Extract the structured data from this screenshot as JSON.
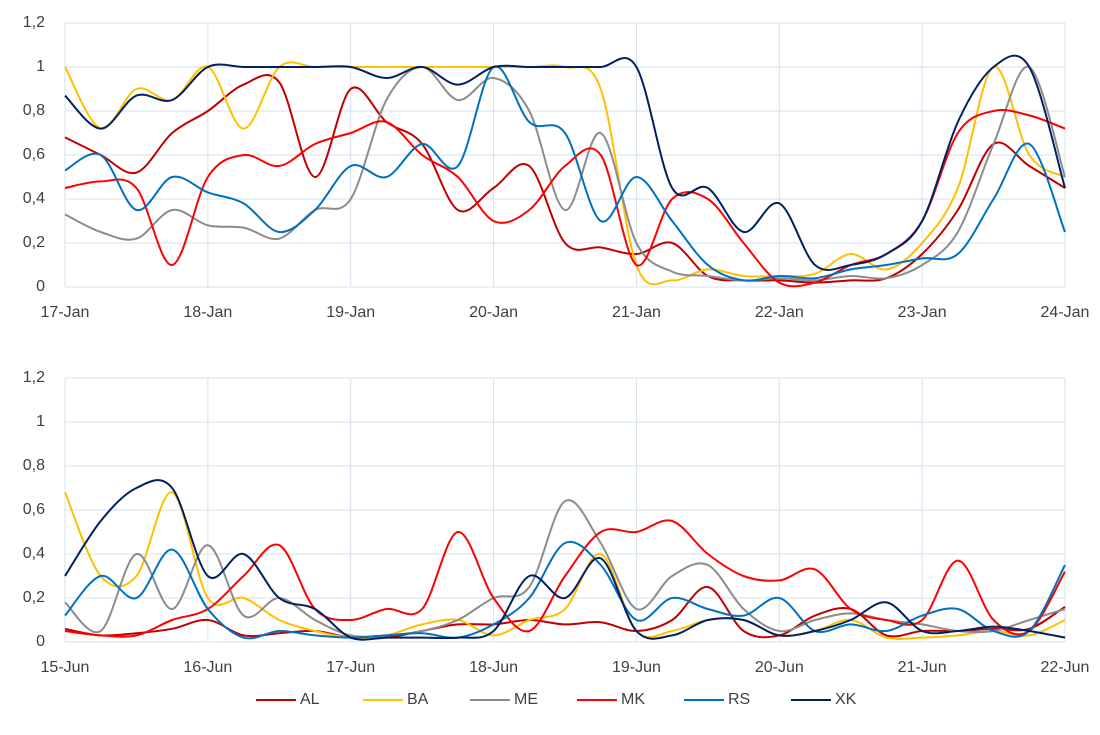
{
  "chart_data": [
    {
      "type": "line",
      "grid": true,
      "legend": "bottom",
      "categories": [
        "17-Jan",
        null,
        null,
        null,
        "18-Jan",
        null,
        null,
        null,
        "19-Jan",
        null,
        null,
        null,
        "20-Jan",
        null,
        null,
        null,
        "21-Jan",
        null,
        null,
        null,
        "22-Jan",
        null,
        null,
        null,
        "23-Jan",
        null,
        null,
        null,
        "24-Jan"
      ],
      "ylim": [
        0,
        1.2
      ],
      "yticks": [
        0,
        {
          "value": 0.2,
          "label": "0,2"
        },
        {
          "value": 0.4,
          "label": "0,4"
        },
        {
          "value": 0.6,
          "label": "0,6"
        },
        {
          "value": 0.8,
          "label": "0,8"
        },
        1,
        {
          "value": 1.2,
          "label": "1,2"
        }
      ],
      "series": [
        {
          "name": "AL",
          "color": "#c00000",
          "values": [
            0.68,
            0.6,
            0.52,
            0.7,
            0.8,
            0.92,
            0.93,
            0.5,
            0.9,
            0.75,
            0.65,
            0.35,
            0.45,
            0.55,
            0.2,
            0.18,
            0.15,
            0.2,
            0.05,
            0.03,
            0.03,
            0.02,
            0.03,
            0.04,
            0.15,
            0.35,
            0.65,
            0.55,
            0.45
          ]
        },
        {
          "name": "BA",
          "color": "#ffc000",
          "values": [
            1,
            0.72,
            0.9,
            0.85,
            1,
            0.72,
            1,
            1,
            1,
            1,
            1,
            1,
            1,
            1,
            1,
            0.9,
            0.1,
            0.03,
            0.08,
            0.05,
            0.05,
            0.06,
            0.15,
            0.08,
            0.2,
            0.45,
            1,
            0.6,
            0.5
          ]
        },
        {
          "name": "ME",
          "color": "#8c8c8c",
          "values": [
            0.33,
            0.25,
            0.22,
            0.35,
            0.28,
            0.27,
            0.22,
            0.35,
            0.4,
            0.85,
            1,
            0.85,
            0.95,
            0.8,
            0.35,
            0.7,
            0.2,
            0.07,
            0.05,
            0.03,
            0.04,
            0.03,
            0.05,
            0.04,
            0.1,
            0.25,
            0.65,
            1,
            0.5
          ]
        },
        {
          "name": "MK",
          "color": "#ff0000",
          "values": [
            0.45,
            0.48,
            0.45,
            0.1,
            0.5,
            0.6,
            0.55,
            0.65,
            0.7,
            0.75,
            0.6,
            0.5,
            0.3,
            0.35,
            0.55,
            0.6,
            0.1,
            0.4,
            0.4,
            0.2,
            0.02,
            0.02,
            0.1,
            0.15,
            0.3,
            0.7,
            0.8,
            0.78,
            0.72
          ]
        },
        {
          "name": "RS",
          "color": "#0070c0",
          "values": [
            0.53,
            0.6,
            0.35,
            0.5,
            0.43,
            0.38,
            0.25,
            0.35,
            0.55,
            0.5,
            0.65,
            0.55,
            1,
            0.75,
            0.7,
            0.3,
            0.5,
            0.3,
            0.1,
            0.03,
            0.05,
            0.04,
            0.08,
            0.1,
            0.13,
            0.15,
            0.4,
            0.65,
            0.25
          ]
        },
        {
          "name": "XK",
          "color": "#002060",
          "values": [
            0.87,
            0.72,
            0.87,
            0.85,
            1,
            1,
            1,
            1,
            1,
            0.95,
            1,
            0.92,
            1,
            1,
            1,
            1,
            1,
            0.45,
            0.45,
            0.25,
            0.38,
            0.1,
            0.1,
            0.15,
            0.3,
            0.75,
            1,
            1,
            0.45
          ]
        }
      ]
    },
    {
      "type": "line",
      "grid": true,
      "categories": [
        "15-Jun",
        null,
        null,
        null,
        "16-Jun",
        null,
        null,
        null,
        "17-Jun",
        null,
        null,
        null,
        "18-Jun",
        null,
        null,
        null,
        "19-Jun",
        null,
        null,
        null,
        "20-Jun",
        null,
        null,
        null,
        "21-Jun",
        null,
        null,
        null,
        "22-Jun"
      ],
      "ylim": [
        0,
        1.2
      ],
      "yticks": [
        0,
        {
          "value": 0.2,
          "label": "0,2"
        },
        {
          "value": 0.4,
          "label": "0,4"
        },
        {
          "value": 0.6,
          "label": "0,6"
        },
        {
          "value": 0.8,
          "label": "0,8"
        },
        1,
        {
          "value": 1.2,
          "label": "1,2"
        }
      ],
      "series": [
        {
          "name": "AL",
          "color": "#c00000",
          "values": [
            0.06,
            0.03,
            0.04,
            0.06,
            0.1,
            0.03,
            0.04,
            0.05,
            0.02,
            0.02,
            0.05,
            0.08,
            0.08,
            0.1,
            0.08,
            0.09,
            0.05,
            0.1,
            0.25,
            0.05,
            0.03,
            0.12,
            0.15,
            0.03,
            0.05,
            0.05,
            0.06,
            0.06,
            0.16
          ]
        },
        {
          "name": "BA",
          "color": "#ffc000",
          "values": [
            0.68,
            0.3,
            0.3,
            0.68,
            0.2,
            0.2,
            0.1,
            0.05,
            0.02,
            0.03,
            0.08,
            0.1,
            0.03,
            0.1,
            0.15,
            0.4,
            0.05,
            0.05,
            0.1,
            0.1,
            0.03,
            0.05,
            0.1,
            0.02,
            0.02,
            0.03,
            0.05,
            0.03,
            0.1
          ]
        },
        {
          "name": "ME",
          "color": "#8c8c8c",
          "values": [
            0.18,
            0.05,
            0.4,
            0.15,
            0.44,
            0.12,
            0.2,
            0.1,
            0.03,
            0.03,
            0.05,
            0.1,
            0.2,
            0.25,
            0.64,
            0.45,
            0.15,
            0.3,
            0.35,
            0.15,
            0.05,
            0.1,
            0.13,
            0.1,
            0.08,
            0.05,
            0.05,
            0.1,
            0.15
          ]
        },
        {
          "name": "MK",
          "color": "#ff0000",
          "values": [
            0.05,
            0.03,
            0.03,
            0.1,
            0.15,
            0.3,
            0.44,
            0.15,
            0.1,
            0.15,
            0.15,
            0.5,
            0.2,
            0.05,
            0.3,
            0.5,
            0.5,
            0.55,
            0.4,
            0.3,
            0.28,
            0.33,
            0.15,
            0.1,
            0.1,
            0.37,
            0.1,
            0.05,
            0.32
          ]
        },
        {
          "name": "RS",
          "color": "#0070c0",
          "values": [
            0.12,
            0.3,
            0.2,
            0.42,
            0.15,
            0.02,
            0.05,
            0.03,
            0.02,
            0.03,
            0.04,
            0.02,
            0.08,
            0.2,
            0.45,
            0.35,
            0.1,
            0.2,
            0.15,
            0.12,
            0.2,
            0.05,
            0.08,
            0.05,
            0.12,
            0.15,
            0.05,
            0.05,
            0.35
          ]
        },
        {
          "name": "XK",
          "color": "#002060",
          "values": [
            0.3,
            0.55,
            0.7,
            0.7,
            0.3,
            0.4,
            0.2,
            0.15,
            0.02,
            0.02,
            0.02,
            0.02,
            0.05,
            0.3,
            0.2,
            0.38,
            0.05,
            0.03,
            0.1,
            0.1,
            0.03,
            0.05,
            0.1,
            0.18,
            0.05,
            0.05,
            0.07,
            0.05,
            0.02
          ]
        }
      ]
    }
  ]
}
